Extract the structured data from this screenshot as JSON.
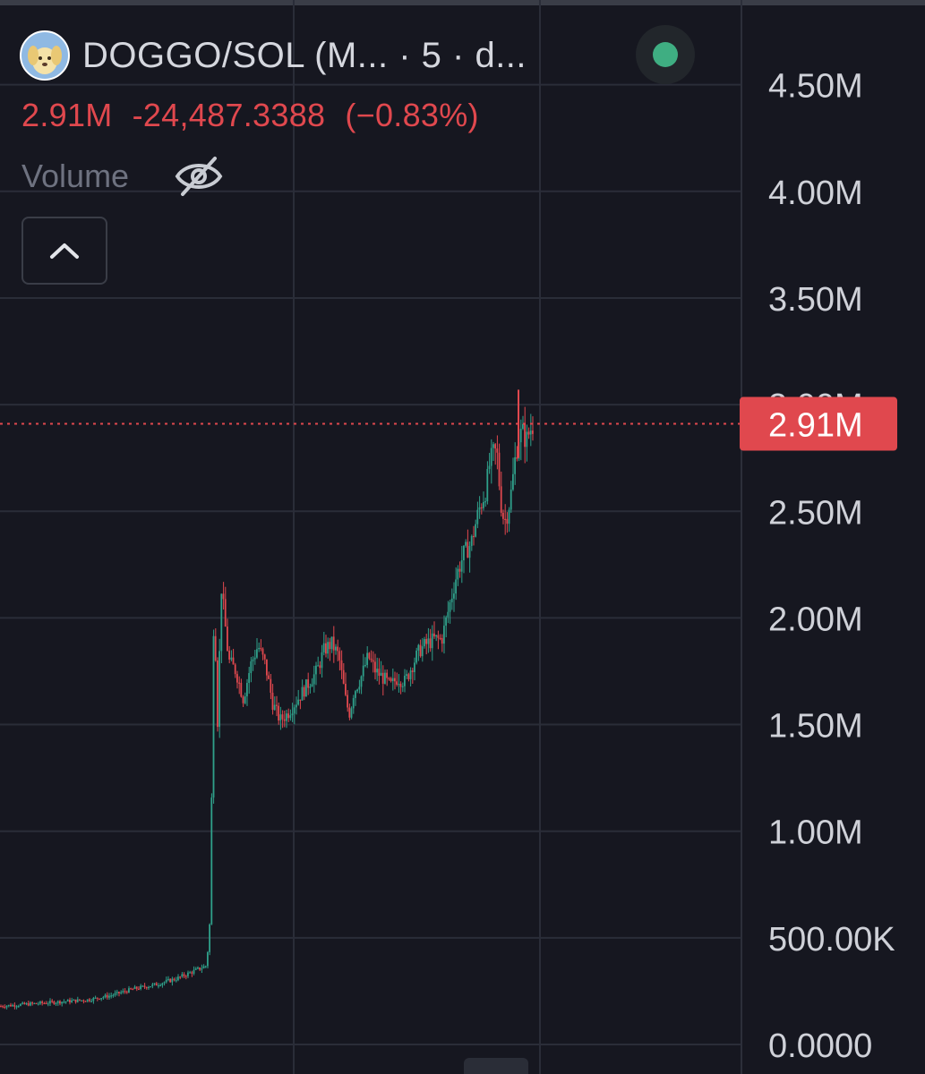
{
  "header": {
    "pair_title": "DOGGO/SOL (M... · 5 · d...",
    "status_color": "#3fae82"
  },
  "price_line": {
    "price": "2.91M",
    "change": "-24,487.3388",
    "change_pct": "(−0.83%)",
    "color": "#e0484e"
  },
  "volume": {
    "label": "Volume",
    "visibility_icon": "eye-off-icon"
  },
  "controls": {
    "collapse_icon": "chevron-up-icon"
  },
  "colors": {
    "up": "#2fa08a",
    "down": "#e0484e",
    "background": "#161720",
    "grid": "#2a2d38",
    "axis_text": "#cfd1d8"
  },
  "chart_data": {
    "type": "candlestick",
    "ylim": [
      0,
      4.75
    ],
    "y_unit": "M",
    "y_ticks": [
      {
        "value": 0,
        "label": "0.0000"
      },
      {
        "value": 0.5,
        "label": "500.00K"
      },
      {
        "value": 1.0,
        "label": "1.00M"
      },
      {
        "value": 1.5,
        "label": "1.50M"
      },
      {
        "value": 2.0,
        "label": "2.00M"
      },
      {
        "value": 2.5,
        "label": "2.50M"
      },
      {
        "value": 3.0,
        "label": "3.00M"
      },
      {
        "value": 3.5,
        "label": "3.50M"
      },
      {
        "value": 4.0,
        "label": "4.00M"
      },
      {
        "value": 4.5,
        "label": "4.50M"
      }
    ],
    "last_price": {
      "value": 2.91,
      "label": "2.91M"
    },
    "close_path": [
      [
        0.0,
        0.18
      ],
      [
        0.04,
        0.19
      ],
      [
        0.08,
        0.2
      ],
      [
        0.12,
        0.21
      ],
      [
        0.15,
        0.23
      ],
      [
        0.18,
        0.26
      ],
      [
        0.21,
        0.28
      ],
      [
        0.24,
        0.31
      ],
      [
        0.26,
        0.34
      ],
      [
        0.28,
        0.37
      ],
      [
        0.285,
        0.6
      ],
      [
        0.29,
        2.1
      ],
      [
        0.295,
        1.5
      ],
      [
        0.3,
        2.15
      ],
      [
        0.31,
        1.8
      ],
      [
        0.32,
        1.75
      ],
      [
        0.33,
        1.62
      ],
      [
        0.34,
        1.78
      ],
      [
        0.35,
        1.87
      ],
      [
        0.36,
        1.78
      ],
      [
        0.37,
        1.6
      ],
      [
        0.38,
        1.52
      ],
      [
        0.39,
        1.55
      ],
      [
        0.4,
        1.6
      ],
      [
        0.41,
        1.65
      ],
      [
        0.42,
        1.7
      ],
      [
        0.43,
        1.75
      ],
      [
        0.44,
        1.85
      ],
      [
        0.45,
        1.88
      ],
      [
        0.46,
        1.82
      ],
      [
        0.47,
        1.6
      ],
      [
        0.475,
        1.55
      ],
      [
        0.48,
        1.65
      ],
      [
        0.49,
        1.72
      ],
      [
        0.5,
        1.82
      ],
      [
        0.51,
        1.75
      ],
      [
        0.52,
        1.72
      ],
      [
        0.53,
        1.68
      ],
      [
        0.54,
        1.72
      ],
      [
        0.55,
        1.7
      ],
      [
        0.56,
        1.78
      ],
      [
        0.57,
        1.85
      ],
      [
        0.58,
        1.88
      ],
      [
        0.59,
        1.9
      ],
      [
        0.6,
        1.9
      ],
      [
        0.61,
        2.05
      ],
      [
        0.62,
        2.2
      ],
      [
        0.63,
        2.3
      ],
      [
        0.64,
        2.35
      ],
      [
        0.65,
        2.5
      ],
      [
        0.66,
        2.6
      ],
      [
        0.665,
        2.72
      ],
      [
        0.67,
        2.77
      ],
      [
        0.675,
        2.78
      ],
      [
        0.68,
        2.55
      ],
      [
        0.685,
        2.45
      ],
      [
        0.69,
        2.5
      ],
      [
        0.695,
        2.6
      ],
      [
        0.7,
        2.75
      ],
      [
        0.705,
        2.85
      ],
      [
        0.71,
        2.87
      ],
      [
        0.715,
        2.83
      ],
      [
        0.72,
        2.88
      ],
      [
        0.725,
        2.91
      ]
    ]
  }
}
